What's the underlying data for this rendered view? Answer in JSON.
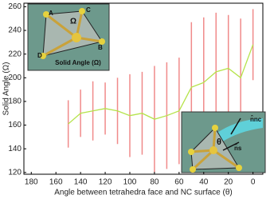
{
  "chart_data": {
    "type": "line",
    "x_label": "Angle between tetrahedra face and NC surface (θ)",
    "y_label": "Solid Angle (Ω)",
    "x": [
      150,
      140,
      130,
      120,
      110,
      100,
      90,
      80,
      70,
      60,
      50,
      40,
      30,
      20,
      10,
      0
    ],
    "series": [
      {
        "color": "#b5e34a",
        "error_color": "#f08a8a",
        "values": [
          161,
          170,
          172,
          174,
          172,
          168,
          170,
          165,
          168,
          172,
          192,
          196,
          205,
          208,
          200,
          228
        ],
        "errors": [
          20,
          20,
          25,
          22,
          28,
          35,
          35,
          45,
          45,
          45,
          55,
          55,
          50,
          45,
          50,
          30
        ]
      }
    ],
    "xlim": [
      186,
      -8
    ],
    "xticks": [
      180,
      160,
      140,
      120,
      100,
      80,
      60,
      40,
      20,
      0
    ],
    "ylim": [
      118.5,
      263
    ],
    "yticks": [
      120,
      140,
      160,
      180,
      200,
      220,
      240,
      260
    ],
    "insets": {
      "top_left": {
        "caption": "Solid Angle (Ω)",
        "symbol": "Ω",
        "vertices": [
          "A",
          "B",
          "C",
          "D"
        ]
      },
      "bottom_right": {
        "angle": "θ",
        "normal_nc": "n̂nc",
        "normal_s": "n̂s"
      }
    }
  }
}
